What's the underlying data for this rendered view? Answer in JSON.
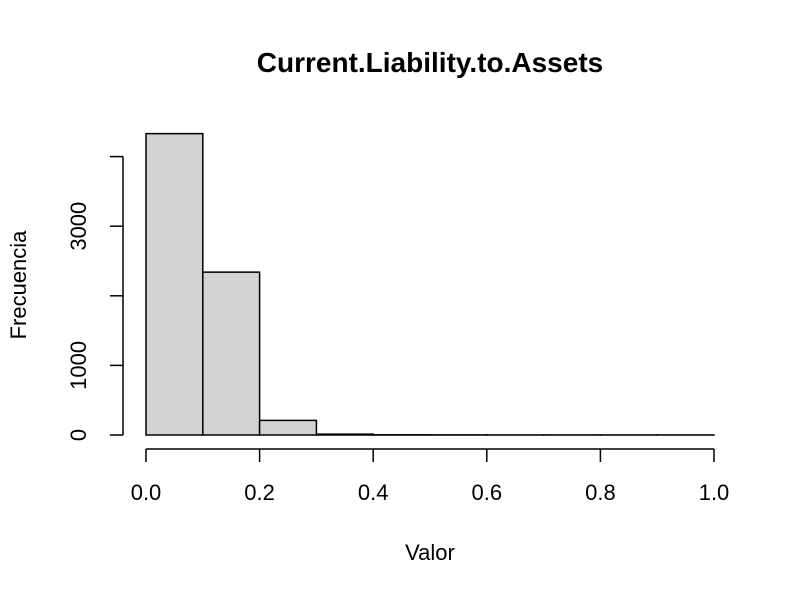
{
  "chart_data": {
    "type": "bar",
    "title": "Current.Liability.to.Assets",
    "xlabel": "Valor",
    "ylabel": "Frecuencia",
    "bin_edges": [
      0.0,
      0.1,
      0.2,
      0.3,
      0.4,
      0.5,
      0.6,
      0.7,
      0.8,
      0.9,
      1.0
    ],
    "values": [
      4330,
      2340,
      210,
      12,
      3,
      2,
      1,
      1,
      1,
      1
    ],
    "x_ticks": [
      "0.0",
      "0.2",
      "0.4",
      "0.6",
      "0.8",
      "1.0"
    ],
    "y_ticks": [
      "0",
      "1000",
      "3000"
    ],
    "xlim": [
      0,
      1
    ],
    "ylim": [
      0,
      4000
    ],
    "bar_color": "#d3d3d3",
    "grid": false
  }
}
